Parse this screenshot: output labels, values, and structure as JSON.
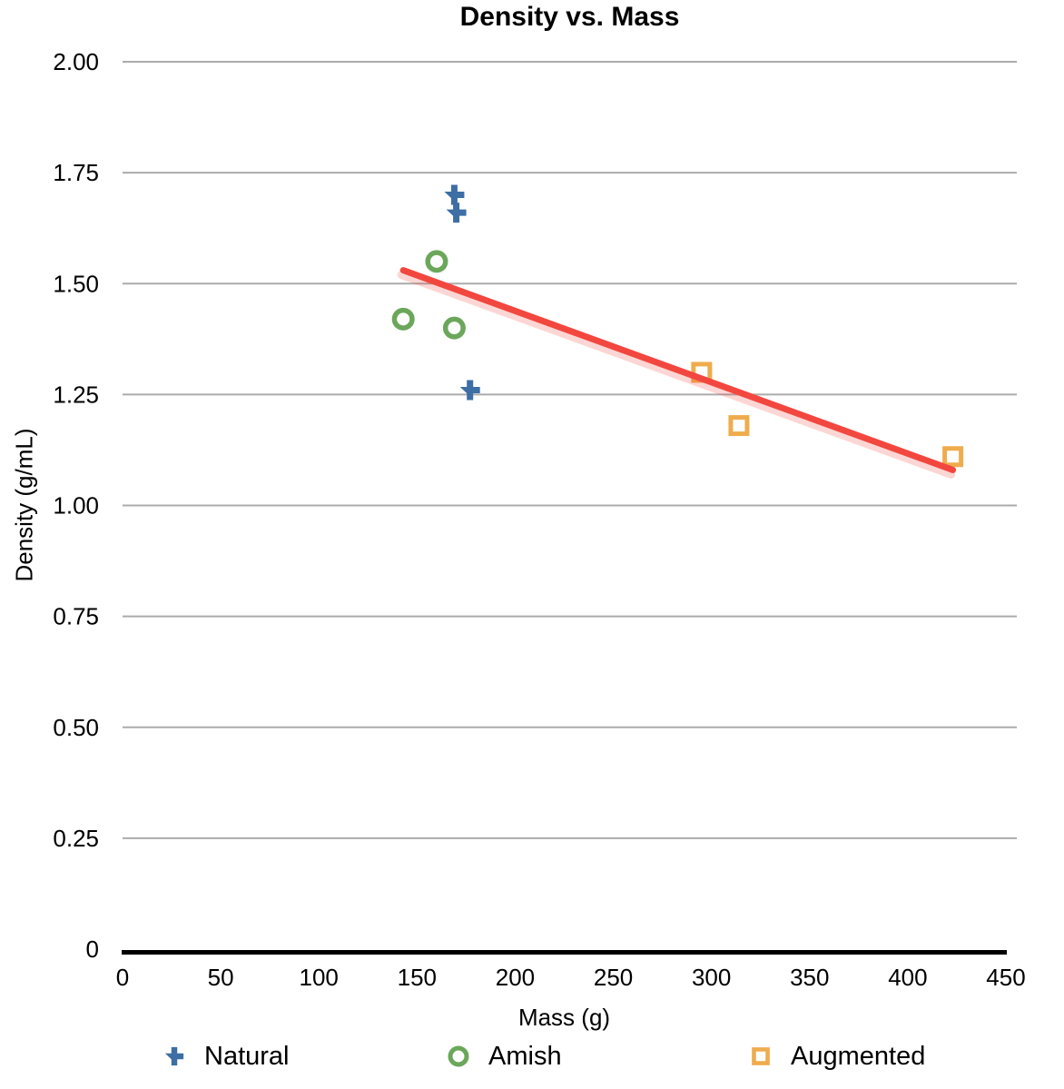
{
  "chart_data": {
    "type": "scatter",
    "title": "Density vs. Mass",
    "xlabel": "Mass (g)",
    "ylabel": "Density (g/mL)",
    "xlim": [
      0,
      450
    ],
    "ylim": [
      0,
      2.0
    ],
    "x_ticks": {
      "values": [
        0,
        50,
        100,
        150,
        200,
        250,
        300,
        350,
        400,
        450
      ],
      "labels": [
        "0",
        "50",
        "100",
        "150",
        "200",
        "250",
        "300",
        "350",
        "400",
        "450"
      ]
    },
    "y_ticks": {
      "values": [
        0,
        0.25,
        0.5,
        0.75,
        1.0,
        1.25,
        1.5,
        1.75,
        2.0
      ],
      "labels": [
        "0",
        "0.25",
        "0.50",
        "0.75",
        "1.00",
        "1.25",
        "1.50",
        "1.75",
        "2.00"
      ]
    },
    "grid": "horizontal",
    "legend_position": "bottom",
    "series": [
      {
        "name": "Natural",
        "marker": "plus",
        "color": "#3D6EA5",
        "points": [
          [
            169,
            1.7
          ],
          [
            170,
            1.66
          ],
          [
            177,
            1.26
          ]
        ]
      },
      {
        "name": "Amish",
        "marker": "circle",
        "color": "#6BA75A",
        "points": [
          [
            160,
            1.55
          ],
          [
            143,
            1.42
          ],
          [
            169,
            1.4
          ]
        ]
      },
      {
        "name": "Augmented",
        "marker": "square",
        "color": "#EFAC4D",
        "points": [
          [
            295,
            1.3
          ],
          [
            314,
            1.18
          ],
          [
            423,
            1.11
          ]
        ]
      }
    ],
    "trendline": {
      "color": "#F2473F",
      "from": [
        143,
        1.53
      ],
      "to": [
        423,
        1.08
      ]
    },
    "style": {
      "gridline_color": "#ABABAB",
      "axis_color": "#000000",
      "text_color": "#000000"
    }
  }
}
